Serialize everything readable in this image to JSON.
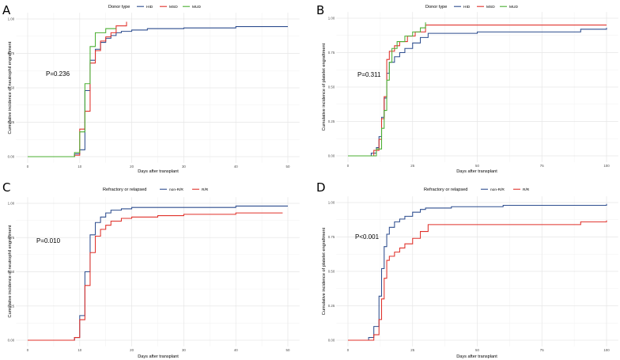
{
  "chart_data": [
    {
      "type": "line",
      "panel": "A",
      "title": "",
      "xlabel": "Days after transplant",
      "ylabel": "Cumulative incidence of neutrophil engraftment",
      "xlim": [
        0,
        50
      ],
      "ylim": [
        0,
        1
      ],
      "xticks": [
        "0",
        "10",
        "20",
        "30",
        "40",
        "50"
      ],
      "yticks": [
        "0.00",
        "0.25",
        "0.50",
        "0.75",
        "1.00"
      ],
      "legend_title": "Donor type",
      "annotation": "P=0.236",
      "series": [
        {
          "name": "HID",
          "color": "#2E4E8F",
          "x": [
            0,
            9,
            10,
            11,
            12,
            13,
            14,
            15,
            16,
            17,
            18,
            20,
            23,
            30,
            40,
            50
          ],
          "y": [
            0,
            0.02,
            0.05,
            0.48,
            0.7,
            0.78,
            0.83,
            0.86,
            0.88,
            0.9,
            0.91,
            0.92,
            0.93,
            0.935,
            0.945,
            0.945
          ]
        },
        {
          "name": "MSD",
          "color": "#E0312A",
          "x": [
            0,
            9,
            10,
            11,
            12,
            13,
            14,
            15,
            16,
            17,
            19
          ],
          "y": [
            0,
            0.01,
            0.2,
            0.33,
            0.68,
            0.77,
            0.84,
            0.87,
            0.9,
            0.95,
            0.98
          ]
        },
        {
          "name": "MUD",
          "color": "#4BAF32",
          "x": [
            0,
            9,
            10,
            11,
            12,
            13,
            15,
            16,
            17
          ],
          "y": [
            0,
            0.03,
            0.18,
            0.53,
            0.8,
            0.9,
            0.93,
            0.93,
            0.93
          ]
        }
      ]
    },
    {
      "type": "line",
      "panel": "B",
      "title": "",
      "xlabel": "Days after transplant",
      "ylabel": "Cumulative incidence of platelet engraftment",
      "xlim": [
        0,
        100
      ],
      "ylim": [
        0,
        1
      ],
      "xticks": [
        "0",
        "25",
        "50",
        "75",
        "100"
      ],
      "yticks": [
        "0.00",
        "0.25",
        "0.50",
        "0.75",
        "1.00"
      ],
      "legend_title": "Donor type",
      "annotation": "P=0.311",
      "series": [
        {
          "name": "HID",
          "color": "#2E4E8F",
          "x": [
            0,
            9,
            11,
            12,
            13,
            14,
            15,
            16,
            18,
            20,
            22,
            25,
            28,
            31,
            50,
            75,
            90,
            100
          ],
          "y": [
            0,
            0.02,
            0.06,
            0.14,
            0.28,
            0.42,
            0.6,
            0.68,
            0.72,
            0.75,
            0.78,
            0.82,
            0.86,
            0.89,
            0.9,
            0.9,
            0.92,
            0.93
          ]
        },
        {
          "name": "MSD",
          "color": "#E0312A",
          "x": [
            0,
            10,
            12,
            13,
            14,
            15,
            16,
            18,
            20,
            23,
            26,
            30,
            100
          ],
          "y": [
            0,
            0.04,
            0.12,
            0.27,
            0.43,
            0.7,
            0.76,
            0.8,
            0.83,
            0.87,
            0.9,
            0.95,
            0.95
          ]
        },
        {
          "name": "MUD",
          "color": "#4BAF32",
          "x": [
            0,
            11,
            13,
            14,
            15,
            16,
            17,
            19,
            22,
            25,
            28,
            30
          ],
          "y": [
            0,
            0.05,
            0.2,
            0.33,
            0.55,
            0.68,
            0.78,
            0.83,
            0.87,
            0.9,
            0.93,
            0.97
          ]
        }
      ]
    },
    {
      "type": "line",
      "panel": "C",
      "title": "",
      "xlabel": "Days after transplant",
      "ylabel": "Cumulative incidence of neutrophil engraftment",
      "xlim": [
        0,
        50
      ],
      "ylim": [
        0,
        1
      ],
      "xticks": [
        "0",
        "10",
        "20",
        "30",
        "40",
        "50"
      ],
      "yticks": [
        "0.00",
        "0.25",
        "0.50",
        "0.75",
        "1.00"
      ],
      "legend_title": "Refractory or relapsed",
      "annotation": "P=0.010",
      "series": [
        {
          "name": "non-R/R",
          "color": "#2E4E8F",
          "x": [
            0,
            9,
            10,
            11,
            12,
            13,
            14,
            15,
            16,
            18,
            20,
            30,
            40,
            50
          ],
          "y": [
            0,
            0.02,
            0.18,
            0.5,
            0.77,
            0.86,
            0.9,
            0.93,
            0.95,
            0.96,
            0.97,
            0.97,
            0.98,
            0.98
          ]
        },
        {
          "name": "R/R",
          "color": "#E0312A",
          "x": [
            0,
            9,
            10,
            11,
            12,
            13,
            14,
            15,
            16,
            18,
            20,
            25,
            30,
            40,
            49
          ],
          "y": [
            0,
            0.02,
            0.15,
            0.4,
            0.64,
            0.76,
            0.81,
            0.84,
            0.87,
            0.89,
            0.9,
            0.91,
            0.92,
            0.93,
            0.93
          ]
        }
      ]
    },
    {
      "type": "line",
      "panel": "D",
      "title": "",
      "xlabel": "Days after transplant",
      "ylabel": "Cumulative incidence of platelet engraftment",
      "xlim": [
        0,
        100
      ],
      "ylim": [
        0,
        1
      ],
      "xticks": [
        "0",
        "25",
        "50",
        "75",
        "100"
      ],
      "yticks": [
        "0.00",
        "0.25",
        "0.50",
        "0.75",
        "1.00"
      ],
      "legend_title": "Refractory or relapsed",
      "annotation": "P<0.001",
      "series": [
        {
          "name": "non-R/R",
          "color": "#2E4E8F",
          "x": [
            0,
            8,
            10,
            12,
            13,
            14,
            15,
            16,
            18,
            20,
            22,
            25,
            28,
            30,
            40,
            60,
            100
          ],
          "y": [
            0,
            0.02,
            0.1,
            0.32,
            0.52,
            0.68,
            0.77,
            0.82,
            0.86,
            0.88,
            0.9,
            0.93,
            0.95,
            0.96,
            0.97,
            0.98,
            0.99
          ]
        },
        {
          "name": "R/R",
          "color": "#E0312A",
          "x": [
            0,
            10,
            12,
            13,
            14,
            15,
            16,
            18,
            20,
            22,
            25,
            28,
            31,
            50,
            75,
            90,
            100
          ],
          "y": [
            0,
            0.04,
            0.15,
            0.3,
            0.45,
            0.58,
            0.61,
            0.64,
            0.67,
            0.7,
            0.74,
            0.79,
            0.84,
            0.84,
            0.84,
            0.86,
            0.87
          ]
        }
      ]
    }
  ]
}
